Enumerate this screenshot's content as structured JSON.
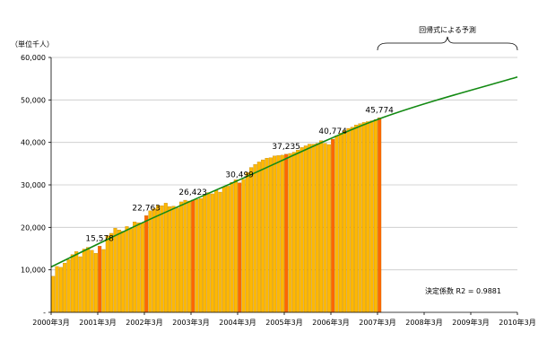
{
  "chart_data": {
    "type": "bar",
    "unit_label": "（単位千人）",
    "ylim": [
      0,
      60000
    ],
    "y_ticks": [
      {
        "value": 0,
        "label": "-"
      },
      {
        "value": 10000,
        "label": "10,000"
      },
      {
        "value": 20000,
        "label": "20,000"
      },
      {
        "value": 30000,
        "label": "30,000"
      },
      {
        "value": 40000,
        "label": "40,000"
      },
      {
        "value": 50000,
        "label": "50,000"
      },
      {
        "value": 60000,
        "label": "60,000"
      }
    ],
    "x_tick_labels": [
      "2000年3月",
      "2001年3月",
      "2002年3月",
      "2003年3月",
      "2004年3月",
      "2005年3月",
      "2006年3月",
      "2007年3月",
      "2008年3月",
      "2009年3月",
      "2010年3月"
    ],
    "months_total": 120,
    "values": [
      8500,
      10800,
      10600,
      11600,
      12400,
      13600,
      14300,
      13100,
      14900,
      15300,
      14600,
      13900,
      15578,
      14800,
      18000,
      18600,
      19800,
      19400,
      19100,
      20200,
      19700,
      21300,
      21100,
      21000,
      22763,
      23900,
      24400,
      25200,
      25100,
      25700,
      24900,
      25000,
      24600,
      26000,
      26400,
      26200,
      26423,
      26600,
      26800,
      27600,
      28200,
      27900,
      28700,
      28300,
      29500,
      29700,
      30600,
      31200,
      30499,
      31300,
      32900,
      34100,
      34800,
      35400,
      35900,
      36300,
      36400,
      36800,
      36900,
      37000,
      37235,
      37400,
      37700,
      38200,
      38800,
      39200,
      39600,
      39600,
      39800,
      40400,
      39800,
      39500,
      40774,
      41600,
      42200,
      42800,
      43300,
      43600,
      44100,
      44400,
      44700,
      44900,
      45100,
      45400,
      45774
    ],
    "data_labels": [
      {
        "index": 12,
        "label": "15,578"
      },
      {
        "index": 24,
        "label": "22,763"
      },
      {
        "index": 36,
        "label": "26,423"
      },
      {
        "index": 48,
        "label": "30,499"
      },
      {
        "index": 60,
        "label": "37,235"
      },
      {
        "index": 72,
        "label": "40,774"
      },
      {
        "index": 84,
        "label": "45,774"
      }
    ],
    "regression": {
      "anchor_points": [
        {
          "month": 0,
          "value": 10700
        },
        {
          "month": 24,
          "value": 21300
        },
        {
          "month": 48,
          "value": 31000
        },
        {
          "month": 84,
          "value": 45400
        },
        {
          "month": 120,
          "value": 55400
        }
      ],
      "bracket_label": "回帰式による予測",
      "r2_label": "決定係数 R2 = 0.9881",
      "r2": 0.9881
    },
    "colors": {
      "bar": "#FFB800",
      "bar_highlight": "#FF6600",
      "bar_outline": "#B07800",
      "trend": "#138A13",
      "grid": "#C8C8C8",
      "axis": "#000000"
    }
  }
}
